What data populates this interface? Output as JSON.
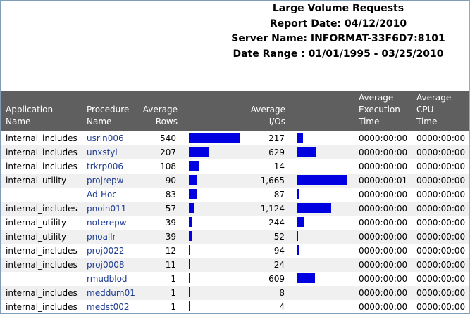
{
  "report": {
    "title": "Large Volume Requests",
    "report_date": "Report Date: 04/12/2010",
    "server_name": "Server Name: INFORMAT-33F6D7:8101",
    "date_range": "Date Range : 01/01/1995 - 03/25/2010"
  },
  "columns": {
    "app_1": "Application",
    "app_2": "Name",
    "proc_1": "Procedure",
    "proc_2": "Name",
    "rows_1": "Average",
    "rows_2": "Rows",
    "ios_1": "Average",
    "ios_2": "I/Os",
    "exec_1": "Average",
    "exec_2": "Execution",
    "exec_3": "Time",
    "cpu_1": "Average",
    "cpu_2": "CPU",
    "cpu_3": "Time"
  },
  "colors": {
    "bar": "#0000e0",
    "header_bg": "#5f5f5f",
    "link": "#1f3c93"
  },
  "rows": [
    {
      "app": "internal_includes",
      "proc": "usrin006",
      "rows": "540",
      "ios": "217",
      "exec": "0000:00:00",
      "cpu": "0000:00:00",
      "rows_value": 540,
      "ios_value": 217
    },
    {
      "app": "internal_includes",
      "proc": "unxstyl",
      "rows": "207",
      "ios": "629",
      "exec": "0000:00:00",
      "cpu": "0000:00:00",
      "rows_value": 207,
      "ios_value": 629
    },
    {
      "app": "internal_includes",
      "proc": "trkrp006",
      "rows": "108",
      "ios": "14",
      "exec": "0000:00:00",
      "cpu": "0000:00:00",
      "rows_value": 108,
      "ios_value": 14
    },
    {
      "app": "internal_utility",
      "proc": "projrepw",
      "rows": "90",
      "ios": "1,665",
      "exec": "0000:00:01",
      "cpu": "0000:00:00",
      "rows_value": 90,
      "ios_value": 1665
    },
    {
      "app": "",
      "proc": "Ad-Hoc",
      "rows": "83",
      "ios": "87",
      "exec": "0000:00:00",
      "cpu": "0000:00:00",
      "rows_value": 83,
      "ios_value": 87
    },
    {
      "app": "internal_includes",
      "proc": "pnoin011",
      "rows": "57",
      "ios": "1,124",
      "exec": "0000:00:00",
      "cpu": "0000:00:00",
      "rows_value": 57,
      "ios_value": 1124
    },
    {
      "app": "internal_utility",
      "proc": "noterepw",
      "rows": "39",
      "ios": "244",
      "exec": "0000:00:00",
      "cpu": "0000:00:00",
      "rows_value": 39,
      "ios_value": 244
    },
    {
      "app": "internal_utility",
      "proc": "pnoallr",
      "rows": "39",
      "ios": "52",
      "exec": "0000:00:00",
      "cpu": "0000:00:00",
      "rows_value": 39,
      "ios_value": 52
    },
    {
      "app": "internal_includes",
      "proc": "proj0022",
      "rows": "12",
      "ios": "94",
      "exec": "0000:00:00",
      "cpu": "0000:00:00",
      "rows_value": 12,
      "ios_value": 94
    },
    {
      "app": "internal_includes",
      "proc": "proj0008",
      "rows": "11",
      "ios": "24",
      "exec": "0000:00:00",
      "cpu": "0000:00:00",
      "rows_value": 11,
      "ios_value": 24
    },
    {
      "app": "",
      "proc": "rmudblod",
      "rows": "1",
      "ios": "609",
      "exec": "0000:00:00",
      "cpu": "0000:00:00",
      "rows_value": 1,
      "ios_value": 609
    },
    {
      "app": "internal_includes",
      "proc": "meddum01",
      "rows": "1",
      "ios": "8",
      "exec": "0000:00:00",
      "cpu": "0000:00:00",
      "rows_value": 1,
      "ios_value": 8
    },
    {
      "app": "internal_includes",
      "proc": "medst002",
      "rows": "1",
      "ios": "4",
      "exec": "0000:00:00",
      "cpu": "0000:00:00",
      "rows_value": 1,
      "ios_value": 4
    }
  ]
}
